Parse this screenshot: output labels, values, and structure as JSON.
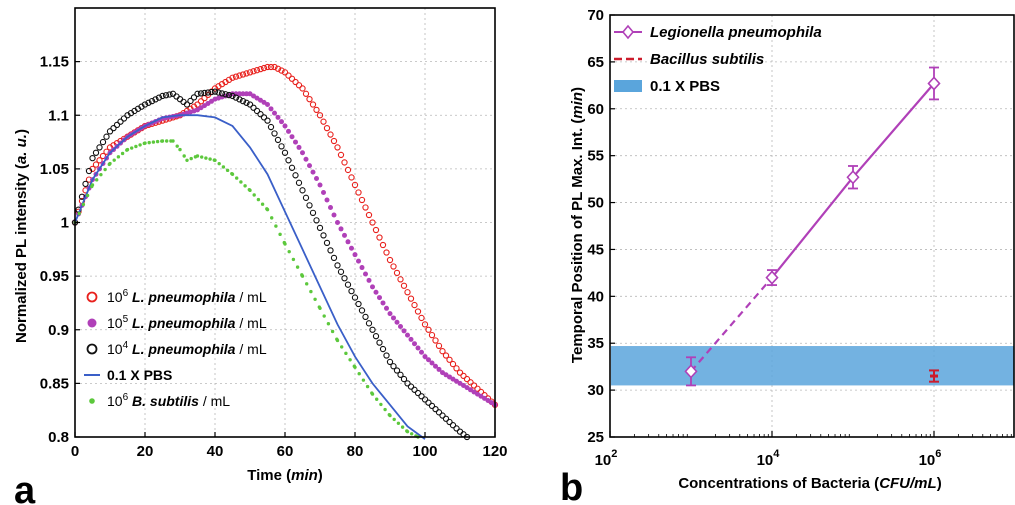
{
  "panel_labels": {
    "a": "a",
    "b": "b"
  },
  "chart_data": [
    {
      "type": "scatter",
      "panel": "a",
      "xlabel": "Time (min)",
      "xlabel_parts": [
        "Time (",
        "min",
        ")"
      ],
      "ylabel": "Normalized PL intensity (a. u.)",
      "ylabel_parts": [
        "Normalized PL intensity (",
        "a. u.",
        ")"
      ],
      "xlim": [
        0,
        120
      ],
      "ylim": [
        0.8,
        1.2
      ],
      "xticks": [
        0,
        20,
        40,
        60,
        80,
        100,
        120
      ],
      "yticks": [
        0.8,
        0.85,
        0.9,
        0.95,
        1,
        1.05,
        1.1,
        1.15
      ],
      "ytick_labels": [
        "0.8",
        "0.85",
        "0.9",
        "0.95",
        "1",
        "1.05",
        "1.1",
        "1.15"
      ],
      "grid": true,
      "legend_position": "bottom-left",
      "series": [
        {
          "name": "10^6 L. pneumophila / mL",
          "legend_parts": [
            "10",
            "6",
            " L. pneumophila",
            " / mL"
          ],
          "marker": "open-circle",
          "color": "#e8201c",
          "x": [
            0,
            5,
            10,
            15,
            20,
            25,
            30,
            35,
            40,
            45,
            50,
            55,
            57,
            60,
            65,
            70,
            75,
            80,
            85,
            90,
            95,
            100,
            105,
            110,
            115,
            120
          ],
          "y": [
            1.0,
            1.05,
            1.07,
            1.08,
            1.09,
            1.095,
            1.1,
            1.11,
            1.125,
            1.135,
            1.14,
            1.145,
            1.145,
            1.14,
            1.125,
            1.1,
            1.07,
            1.035,
            1.0,
            0.965,
            0.935,
            0.905,
            0.88,
            0.86,
            0.845,
            0.83
          ]
        },
        {
          "name": "10^5 L. pneumophila / mL",
          "legend_parts": [
            "10",
            "5",
            " L. pneumophila",
            " / mL"
          ],
          "marker": "filled-circle",
          "color": "#b040b8",
          "x": [
            0,
            5,
            10,
            15,
            20,
            25,
            30,
            35,
            40,
            45,
            50,
            55,
            60,
            65,
            70,
            75,
            80,
            85,
            90,
            95,
            100,
            105,
            110,
            115,
            120
          ],
          "y": [
            1.0,
            1.04,
            1.065,
            1.08,
            1.09,
            1.097,
            1.1,
            1.105,
            1.115,
            1.12,
            1.12,
            1.11,
            1.09,
            1.065,
            1.035,
            1.0,
            0.97,
            0.94,
            0.915,
            0.895,
            0.875,
            0.86,
            0.85,
            0.84,
            0.83
          ]
        },
        {
          "name": "10^4 L. pneumophila / mL",
          "legend_parts": [
            "10",
            "4",
            " L. pneumophila",
            " / mL"
          ],
          "marker": "open-circle",
          "color": "#111111",
          "x": [
            0,
            5,
            10,
            15,
            20,
            25,
            28,
            30,
            32,
            35,
            40,
            45,
            50,
            55,
            60,
            65,
            70,
            75,
            80,
            85,
            90,
            95,
            100,
            105,
            110,
            112
          ],
          "y": [
            1.0,
            1.06,
            1.085,
            1.1,
            1.11,
            1.118,
            1.12,
            1.115,
            1.11,
            1.12,
            1.122,
            1.118,
            1.11,
            1.095,
            1.065,
            1.03,
            0.995,
            0.96,
            0.93,
            0.9,
            0.87,
            0.85,
            0.835,
            0.82,
            0.805,
            0.8
          ]
        },
        {
          "name": "0.1 X PBS",
          "legend_parts": [
            "",
            "",
            "0.1 X PBS",
            ""
          ],
          "marker": "line",
          "color": "#3a5fc8",
          "x": [
            0,
            5,
            10,
            15,
            20,
            25,
            30,
            35,
            40,
            45,
            50,
            55,
            60,
            65,
            70,
            75,
            80,
            85,
            90,
            95,
            100
          ],
          "y": [
            1.0,
            1.04,
            1.065,
            1.08,
            1.09,
            1.098,
            1.1,
            1.1,
            1.098,
            1.09,
            1.07,
            1.045,
            1.01,
            0.975,
            0.94,
            0.905,
            0.875,
            0.85,
            0.83,
            0.81,
            0.798
          ]
        },
        {
          "name": "10^6 B. subtilis / mL",
          "legend_parts": [
            "10",
            "6",
            " B. subtilis",
            " / mL"
          ],
          "marker": "filled-dot",
          "color": "#5cc83c",
          "x": [
            0,
            5,
            10,
            15,
            20,
            25,
            28,
            30,
            32,
            35,
            40,
            45,
            50,
            55,
            60,
            65,
            70,
            75,
            80,
            85,
            90,
            95,
            98
          ],
          "y": [
            1.0,
            1.035,
            1.055,
            1.068,
            1.074,
            1.076,
            1.076,
            1.068,
            1.058,
            1.062,
            1.058,
            1.045,
            1.03,
            1.012,
            0.98,
            0.95,
            0.92,
            0.89,
            0.865,
            0.84,
            0.82,
            0.805,
            0.8
          ]
        }
      ]
    },
    {
      "type": "line",
      "panel": "b",
      "xscale": "log",
      "xlabel": "Concentrations of Bacteria (CFU/mL)",
      "xlabel_parts": [
        "Concentrations of Bacteria (",
        "CFU/mL",
        ")"
      ],
      "ylabel": "Temporal Position of PL Max. Int. (min)",
      "ylabel_parts": [
        "Temporal Position of PL Max. Int. (",
        "min",
        ")"
      ],
      "xlim": [
        100,
        10000000
      ],
      "ylim": [
        25,
        70
      ],
      "xticks": [
        100,
        10000,
        1000000
      ],
      "xtick_labels": [
        [
          "10",
          "2"
        ],
        [
          "10",
          "4"
        ],
        [
          "10",
          "6"
        ]
      ],
      "yticks": [
        25,
        30,
        35,
        40,
        45,
        50,
        55,
        60,
        65,
        70
      ],
      "grid": true,
      "legend_position": "top-left",
      "pbs_band": {
        "y_low": 30.5,
        "y_high": 34.7,
        "color": "#5aa5dc"
      },
      "series": [
        {
          "name": "Legionella pneumophila",
          "color": "#b040b8",
          "x": [
            1000,
            10000,
            100000,
            1000000
          ],
          "y": [
            32.0,
            42.0,
            52.7,
            62.7
          ],
          "error": [
            1.5,
            0.8,
            1.2,
            1.7
          ]
        },
        {
          "name": "Bacillus subtilis",
          "color": "#cc1c2c",
          "x": [
            1000000
          ],
          "y": [
            31.5
          ],
          "error": [
            0.6
          ]
        }
      ],
      "legend_entries": [
        "Legionella pneumophila",
        "Bacillus subtilis",
        "0.1 X PBS"
      ]
    }
  ]
}
